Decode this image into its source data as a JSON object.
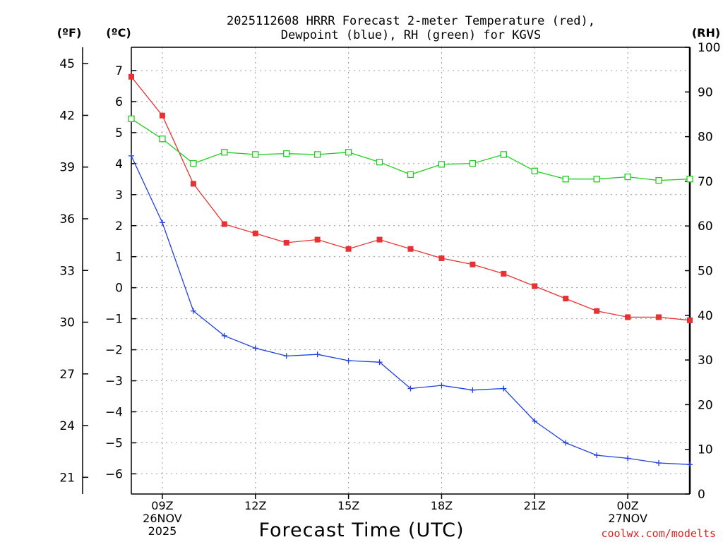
{
  "chart_data": {
    "type": "line",
    "title_line1": "2025112608 HRRR Forecast 2-meter Temperature (red),",
    "title_line2": "Dewpoint (blue), RH (green) for KGVS",
    "xlabel": "Forecast Time (UTC)",
    "left_outer_unit": "(ºF)",
    "left_inner_unit": "(ºC)",
    "right_unit": "(RH)",
    "credit": "coolwx.com/modelts",
    "x_hours": [
      8,
      9,
      10,
      11,
      12,
      13,
      14,
      15,
      16,
      17,
      18,
      19,
      20,
      21,
      22,
      23,
      24,
      25,
      26
    ],
    "x_range": [
      8,
      26
    ],
    "x_ticks": [
      {
        "hour": 9,
        "line1": "09Z",
        "line2": "26NOV",
        "line3": "2025"
      },
      {
        "hour": 12,
        "line1": "12Z",
        "line2": "",
        "line3": ""
      },
      {
        "hour": 15,
        "line1": "15Z",
        "line2": "",
        "line3": ""
      },
      {
        "hour": 18,
        "line1": "18Z",
        "line2": "",
        "line3": ""
      },
      {
        "hour": 21,
        "line1": "21Z",
        "line2": "",
        "line3": ""
      },
      {
        "hour": 24,
        "line1": "00Z",
        "line2": "27NOV",
        "line3": ""
      }
    ],
    "celsius_range": [
      -6.65,
      7.75
    ],
    "celsius_ticks": [
      "7",
      "6",
      "5",
      "4",
      "3",
      "2",
      "1",
      "0",
      "−1",
      "−2",
      "−3",
      "−4",
      "−5",
      "−6"
    ],
    "celsius_tick_values": [
      7,
      6,
      5,
      4,
      3,
      2,
      1,
      0,
      -1,
      -2,
      -3,
      -4,
      -5,
      -6
    ],
    "fahrenheit_ticks": [
      "45",
      "42",
      "39",
      "36",
      "33",
      "30",
      "27",
      "24",
      "21"
    ],
    "fahrenheit_tick_values": [
      45,
      42,
      39,
      36,
      33,
      30,
      27,
      24,
      21
    ],
    "rh_range": [
      0,
      100
    ],
    "rh_ticks": [
      "100",
      "90",
      "80",
      "70",
      "60",
      "50",
      "40",
      "30",
      "20",
      "10",
      "0"
    ],
    "rh_tick_values": [
      100,
      90,
      80,
      70,
      60,
      50,
      40,
      30,
      20,
      10,
      0
    ],
    "series": [
      {
        "name": "Temperature",
        "color": "#e63232",
        "marker": "filled-square",
        "values": [
          6.8,
          5.55,
          3.35,
          2.05,
          1.75,
          1.45,
          1.55,
          1.25,
          1.55,
          1.25,
          0.95,
          0.75,
          0.45,
          0.05,
          -0.35,
          -0.75,
          -0.95,
          -0.95,
          -1.05
        ]
      },
      {
        "name": "Dewpoint",
        "color": "#2040e0",
        "marker": "plus",
        "values": [
          4.25,
          2.1,
          -0.75,
          -1.55,
          -1.95,
          -2.2,
          -2.15,
          -2.35,
          -2.4,
          -3.25,
          -3.15,
          -3.3,
          -3.25,
          -4.3,
          -5.0,
          -5.4,
          -5.5,
          -5.65,
          -5.7
        ]
      },
      {
        "name": "RH",
        "color": "#22cc22",
        "marker": "open-square",
        "axis": "right",
        "values": [
          84,
          79.5,
          74,
          76.5,
          76,
          76.2,
          76,
          76.5,
          74.3,
          71.5,
          73.8,
          74,
          76,
          72.3,
          70.5,
          70.5,
          71,
          70.2,
          70.5
        ]
      }
    ]
  }
}
